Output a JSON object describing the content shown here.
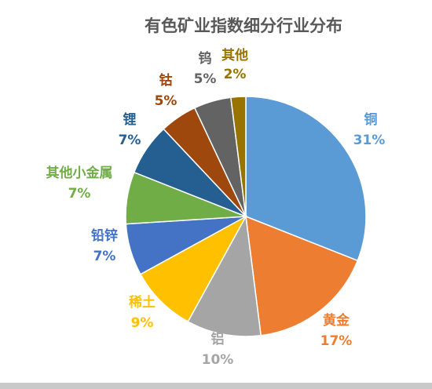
{
  "chart_data": {
    "type": "pie",
    "title": "有色矿业指数细分行业分布",
    "slices": [
      {
        "label": "铜",
        "value": 31,
        "display": "31%",
        "color": "#5b9bd5"
      },
      {
        "label": "黄金",
        "value": 17,
        "display": "17%",
        "color": "#ed7d31"
      },
      {
        "label": "铝",
        "value": 10,
        "display": "10%",
        "color": "#a5a5a5"
      },
      {
        "label": "稀土",
        "value": 9,
        "display": "9%",
        "color": "#ffc000"
      },
      {
        "label": "铅锌",
        "value": 7,
        "display": "7%",
        "color": "#4472c4"
      },
      {
        "label": "其他小金属",
        "value": 7,
        "display": "7%",
        "color": "#70ad47"
      },
      {
        "label": "锂",
        "value": 7,
        "display": "7%",
        "color": "#255e91"
      },
      {
        "label": "钴",
        "value": 5,
        "display": "5%",
        "color": "#9e480e"
      },
      {
        "label": "钨",
        "value": 5,
        "display": "5%",
        "color": "#636363"
      },
      {
        "label": "其他",
        "value": 2,
        "display": "2%",
        "color": "#997300"
      }
    ],
    "legend": "none",
    "data_labels": "outside"
  }
}
